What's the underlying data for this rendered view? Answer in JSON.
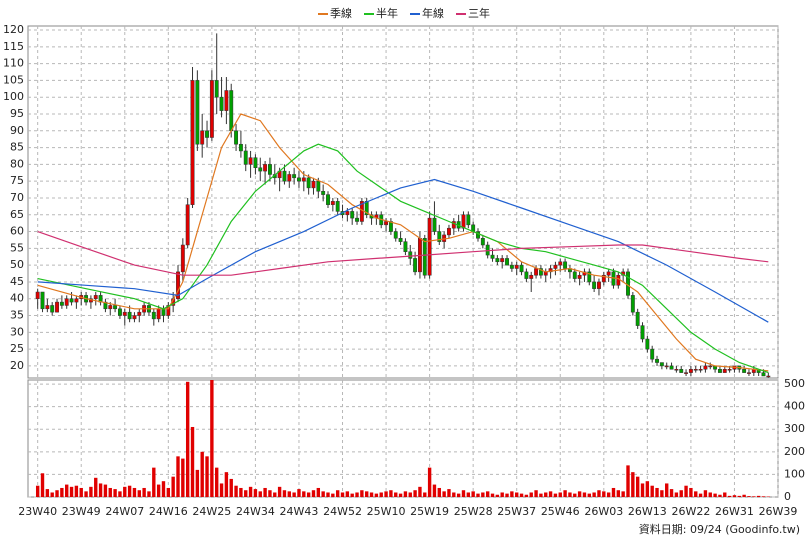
{
  "chart_data": {
    "type": "candlestick",
    "ohlc": [
      [
        40,
        43,
        37,
        42
      ],
      [
        42,
        42,
        36,
        37
      ],
      [
        37,
        40,
        36,
        38
      ],
      [
        38,
        39,
        35,
        36
      ],
      [
        36,
        40,
        36,
        39
      ],
      [
        39,
        41,
        37,
        38
      ],
      [
        38,
        41,
        37,
        40
      ],
      [
        40,
        42,
        38,
        39
      ],
      [
        39,
        41,
        37,
        40
      ],
      [
        40,
        42,
        38,
        41
      ],
      [
        41,
        42,
        38,
        39
      ],
      [
        39,
        41,
        37,
        40
      ],
      [
        40,
        42,
        38,
        41
      ],
      [
        41,
        42,
        38,
        39
      ],
      [
        39,
        40,
        36,
        37
      ],
      [
        37,
        39,
        35,
        38
      ],
      [
        38,
        40,
        36,
        37
      ],
      [
        37,
        38,
        34,
        35
      ],
      [
        35,
        37,
        32,
        36
      ],
      [
        36,
        38,
        33,
        34
      ],
      [
        34,
        36,
        33,
        35
      ],
      [
        35,
        37,
        33,
        36
      ],
      [
        36,
        39,
        35,
        38
      ],
      [
        38,
        39,
        35,
        36
      ],
      [
        36,
        37,
        32,
        34
      ],
      [
        34,
        38,
        33,
        37
      ],
      [
        37,
        38,
        33,
        35
      ],
      [
        35,
        39,
        34,
        38
      ],
      [
        38,
        42,
        36,
        40
      ],
      [
        40,
        50,
        39,
        48
      ],
      [
        48,
        58,
        45,
        56
      ],
      [
        56,
        70,
        55,
        68
      ],
      [
        68,
        109,
        67,
        105
      ],
      [
        105,
        108,
        84,
        86
      ],
      [
        86,
        95,
        82,
        90
      ],
      [
        90,
        93,
        85,
        88
      ],
      [
        88,
        108,
        87,
        105
      ],
      [
        105,
        119,
        95,
        100
      ],
      [
        100,
        106,
        94,
        96
      ],
      [
        96,
        106,
        92,
        102
      ],
      [
        102,
        104,
        88,
        90
      ],
      [
        90,
        92,
        84,
        86
      ],
      [
        86,
        90,
        82,
        84
      ],
      [
        84,
        86,
        78,
        80
      ],
      [
        80,
        84,
        76,
        82
      ],
      [
        82,
        83,
        77,
        79
      ],
      [
        79,
        82,
        75,
        78
      ],
      [
        78,
        81,
        74,
        80
      ],
      [
        80,
        82,
        75,
        77
      ],
      [
        77,
        80,
        74,
        76
      ],
      [
        76,
        79,
        72,
        78
      ],
      [
        78,
        80,
        74,
        75
      ],
      [
        75,
        78,
        73,
        77
      ],
      [
        77,
        79,
        74,
        76
      ],
      [
        76,
        78,
        73,
        75
      ],
      [
        75,
        78,
        72,
        76
      ],
      [
        76,
        77,
        71,
        73
      ],
      [
        73,
        76,
        71,
        75
      ],
      [
        75,
        76,
        70,
        72
      ],
      [
        72,
        74,
        69,
        71
      ],
      [
        71,
        72,
        67,
        68
      ],
      [
        68,
        70,
        66,
        69
      ],
      [
        69,
        70,
        65,
        66
      ],
      [
        66,
        68,
        64,
        65
      ],
      [
        65,
        67,
        63,
        66
      ],
      [
        66,
        67,
        62,
        64
      ],
      [
        64,
        66,
        62,
        63
      ],
      [
        63,
        70,
        62,
        69
      ],
      [
        69,
        70,
        64,
        65
      ],
      [
        65,
        66,
        62,
        64
      ],
      [
        64,
        66,
        62,
        65
      ],
      [
        65,
        66,
        61,
        62
      ],
      [
        62,
        64,
        60,
        63
      ],
      [
        63,
        64,
        59,
        60
      ],
      [
        60,
        61,
        57,
        58
      ],
      [
        58,
        60,
        56,
        57
      ],
      [
        57,
        58,
        53,
        54
      ],
      [
        54,
        56,
        50,
        52
      ],
      [
        52,
        54,
        47,
        48
      ],
      [
        48,
        60,
        46,
        58
      ],
      [
        58,
        59,
        46,
        47
      ],
      [
        47,
        66,
        46,
        64
      ],
      [
        64,
        69,
        59,
        60
      ],
      [
        60,
        62,
        56,
        57
      ],
      [
        57,
        60,
        55,
        59
      ],
      [
        59,
        62,
        58,
        61
      ],
      [
        61,
        64,
        59,
        63
      ],
      [
        63,
        65,
        60,
        61
      ],
      [
        61,
        66,
        60,
        65
      ],
      [
        65,
        66,
        61,
        62
      ],
      [
        62,
        63,
        59,
        60
      ],
      [
        60,
        61,
        57,
        58
      ],
      [
        58,
        59,
        55,
        56
      ],
      [
        56,
        57,
        52,
        53
      ],
      [
        53,
        55,
        51,
        52
      ],
      [
        52,
        53,
        50,
        51
      ],
      [
        51,
        53,
        49,
        52
      ],
      [
        52,
        53,
        50,
        50
      ],
      [
        50,
        51,
        48,
        49
      ],
      [
        49,
        51,
        47,
        50
      ],
      [
        50,
        51,
        47,
        48
      ],
      [
        48,
        49,
        45,
        46
      ],
      [
        46,
        48,
        42,
        47
      ],
      [
        47,
        50,
        46,
        49
      ],
      [
        49,
        50,
        46,
        47
      ],
      [
        47,
        49,
        45,
        48
      ],
      [
        48,
        50,
        46,
        49
      ],
      [
        49,
        51,
        47,
        50
      ],
      [
        50,
        52,
        48,
        51
      ],
      [
        51,
        52,
        48,
        49
      ],
      [
        49,
        50,
        46,
        48
      ],
      [
        48,
        49,
        45,
        46
      ],
      [
        46,
        48,
        44,
        47
      ],
      [
        47,
        49,
        45,
        48
      ],
      [
        48,
        49,
        44,
        45
      ],
      [
        45,
        47,
        42,
        43
      ],
      [
        43,
        46,
        41,
        45
      ],
      [
        45,
        48,
        44,
        47
      ],
      [
        47,
        49,
        45,
        48
      ],
      [
        48,
        49,
        43,
        44
      ],
      [
        44,
        48,
        43,
        47
      ],
      [
        47,
        49,
        45,
        48
      ],
      [
        48,
        49,
        40,
        41
      ],
      [
        41,
        42,
        35,
        36
      ],
      [
        36,
        37,
        31,
        32
      ],
      [
        32,
        33,
        27,
        28
      ],
      [
        28,
        29,
        24,
        25
      ],
      [
        25,
        26,
        21,
        22
      ],
      [
        22,
        23,
        20,
        21
      ],
      [
        21,
        21,
        19,
        20
      ],
      [
        20,
        21,
        19,
        20
      ],
      [
        20,
        21,
        19,
        19
      ],
      [
        19,
        20,
        18,
        19
      ],
      [
        19,
        20,
        18,
        18
      ],
      [
        18,
        19,
        17,
        18
      ],
      [
        18,
        20,
        17,
        19
      ],
      [
        19,
        20,
        18,
        19
      ],
      [
        19,
        20,
        18,
        19
      ],
      [
        19,
        21,
        18,
        20
      ],
      [
        20,
        21,
        19,
        20
      ],
      [
        20,
        20,
        18,
        19
      ],
      [
        19,
        20,
        18,
        18
      ],
      [
        18,
        20,
        18,
        19
      ],
      [
        19,
        20,
        18,
        19
      ],
      [
        19,
        20,
        18,
        20
      ],
      [
        20,
        20,
        18,
        19
      ],
      [
        19,
        20,
        18,
        18
      ],
      [
        18,
        19,
        17,
        18
      ],
      [
        18,
        20,
        17,
        19
      ],
      [
        19,
        19,
        17,
        18
      ],
      [
        18,
        19,
        17,
        17
      ],
      [
        17,
        18,
        16.5,
        17
      ]
    ],
    "volume": [
      50,
      105,
      35,
      20,
      30,
      40,
      55,
      45,
      50,
      40,
      25,
      45,
      85,
      60,
      55,
      40,
      35,
      25,
      45,
      50,
      40,
      30,
      40,
      25,
      130,
      55,
      70,
      40,
      90,
      180,
      170,
      510,
      310,
      120,
      200,
      180,
      530,
      130,
      60,
      110,
      80,
      50,
      40,
      30,
      45,
      35,
      25,
      40,
      30,
      20,
      45,
      30,
      25,
      20,
      35,
      25,
      20,
      30,
      40,
      25,
      20,
      15,
      30,
      20,
      25,
      15,
      20,
      30,
      25,
      20,
      15,
      20,
      25,
      30,
      20,
      15,
      25,
      20,
      30,
      45,
      20,
      130,
      55,
      40,
      25,
      35,
      20,
      15,
      30,
      20,
      25,
      15,
      20,
      25,
      15,
      10,
      20,
      15,
      25,
      20,
      15,
      10,
      20,
      30,
      15,
      20,
      25,
      15,
      20,
      30,
      20,
      15,
      25,
      20,
      15,
      20,
      30,
      25,
      20,
      40,
      30,
      25,
      140,
      110,
      90,
      60,
      70,
      50,
      40,
      30,
      60,
      35,
      20,
      30,
      50,
      40,
      25,
      15,
      30,
      20,
      15,
      10,
      20,
      5,
      8,
      5,
      10,
      4,
      3,
      5,
      3,
      2
    ],
    "ylim": [
      16.4,
      121.2
    ],
    "yticks": [
      20,
      25,
      30,
      35,
      40,
      45,
      50,
      55,
      60,
      65,
      70,
      75,
      80,
      85,
      90,
      95,
      100,
      105,
      110,
      115,
      120
    ],
    "vlim": [
      0,
      518
    ],
    "vticks": [
      0,
      100,
      200,
      300,
      400,
      500
    ],
    "xlim": [
      -2,
      153
    ],
    "xticks": [
      {
        "value": 0,
        "label": "23W40"
      },
      {
        "value": 9,
        "label": "23W49"
      },
      {
        "value": 18,
        "label": "24W07"
      },
      {
        "value": 27,
        "label": "24W16"
      },
      {
        "value": 36,
        "label": "24W25"
      },
      {
        "value": 45,
        "label": "24W34"
      },
      {
        "value": 54,
        "label": "24W43"
      },
      {
        "value": 63,
        "label": "24W52"
      },
      {
        "value": 72,
        "label": "25W10"
      },
      {
        "value": 81,
        "label": "25W19"
      },
      {
        "value": 90,
        "label": "25W28"
      },
      {
        "value": 99,
        "label": "25W37"
      },
      {
        "value": 108,
        "label": "25W46"
      },
      {
        "value": 117,
        "label": "26W03"
      },
      {
        "value": 126,
        "label": "26W13"
      },
      {
        "value": 135,
        "label": "26W22"
      },
      {
        "value": 144,
        "label": "26W31"
      },
      {
        "value": 153,
        "label": "26W39"
      }
    ],
    "up_color": "#e00000",
    "down_color": "#00a000",
    "volume_color": "#e00000",
    "grid": true,
    "series": [
      {
        "name": "季線",
        "color": "#e07820",
        "x": [
          0,
          10,
          20,
          27,
          30,
          35,
          38,
          42,
          46,
          50,
          55,
          60,
          65,
          70,
          75,
          80,
          85,
          90,
          95,
          100,
          105,
          110,
          115,
          120,
          124,
          128,
          132,
          136,
          140,
          145,
          151
        ],
        "values": [
          44,
          40,
          37,
          37,
          45,
          70,
          85,
          95,
          93,
          85,
          77,
          74,
          68,
          64,
          62,
          57,
          58,
          60,
          57,
          51,
          48,
          49,
          47,
          46,
          42,
          35,
          28,
          22,
          20,
          19.5,
          18.5
        ]
      },
      {
        "name": "半年",
        "color": "#20c020",
        "x": [
          0,
          10,
          20,
          26,
          30,
          35,
          40,
          45,
          50,
          55,
          58,
          62,
          66,
          70,
          75,
          80,
          85,
          90,
          95,
          100,
          105,
          110,
          115,
          120,
          125,
          130,
          135,
          140,
          145,
          151
        ],
        "values": [
          46,
          43,
          40,
          37,
          40,
          50,
          63,
          72,
          78,
          84,
          86,
          84,
          78,
          74,
          69,
          66,
          63,
          60,
          57,
          55,
          54,
          52,
          50,
          48,
          44,
          37,
          30,
          25,
          21,
          18
        ]
      },
      {
        "name": "年線",
        "color": "#2060d0",
        "x": [
          0,
          10,
          20,
          29,
          35,
          45,
          55,
          65,
          75,
          82,
          90,
          100,
          110,
          120,
          130,
          140,
          151
        ],
        "values": [
          45,
          44,
          43,
          41,
          46,
          54,
          60,
          67,
          73,
          75.5,
          72,
          67,
          62,
          57,
          50,
          42,
          33
        ]
      },
      {
        "name": "三年",
        "color": "#d03070",
        "x": [
          0,
          10,
          20,
          30,
          40,
          50,
          60,
          70,
          80,
          90,
          100,
          110,
          120,
          125,
          135,
          145,
          151
        ],
        "values": [
          60,
          55,
          50,
          47,
          47,
          49,
          51,
          52,
          53,
          54,
          55,
          55.5,
          56,
          56,
          54,
          52,
          51
        ]
      }
    ],
    "source": "資料日期: 09/24 (Goodinfo.tw)"
  }
}
